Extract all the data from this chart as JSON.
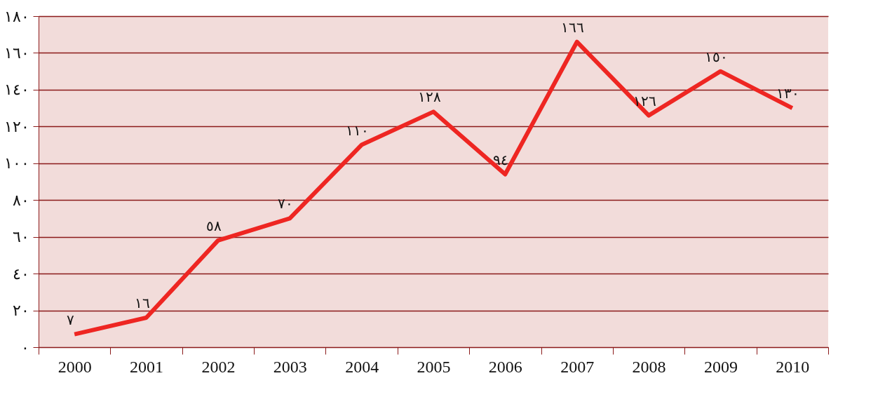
{
  "chart_data": {
    "type": "line",
    "categories": [
      "2000",
      "2001",
      "2002",
      "2003",
      "2004",
      "2005",
      "2006",
      "2007",
      "2008",
      "2009",
      "2010"
    ],
    "series": [
      {
        "color": "#ee2622",
        "values": [
          7,
          16,
          58,
          70,
          110,
          128,
          94,
          166,
          126,
          150,
          130
        ],
        "value_labels": [
          "٧",
          "١٦",
          "٥٨",
          "٧٠",
          "١١٠",
          "١٢٨",
          "٩٤",
          "١٦٦",
          "١٢٦",
          "١٥٠",
          "١٣٠"
        ]
      }
    ],
    "ylim": [
      0,
      180
    ],
    "yticks": [
      {
        "value": 0,
        "label": "٠"
      },
      {
        "value": 20,
        "label": "٢٠"
      },
      {
        "value": 40,
        "label": "٤٠"
      },
      {
        "value": 60,
        "label": "٦٠"
      },
      {
        "value": 80,
        "label": "٨٠"
      },
      {
        "value": 100,
        "label": "١٠٠"
      },
      {
        "value": 120,
        "label": "١٢٠"
      },
      {
        "value": 140,
        "label": "١٤٠"
      },
      {
        "value": 160,
        "label": "١٦٠"
      },
      {
        "value": 180,
        "label": "١٨٠"
      }
    ],
    "grid": "y",
    "legend": false,
    "marker": "none",
    "line_style": "solid"
  }
}
